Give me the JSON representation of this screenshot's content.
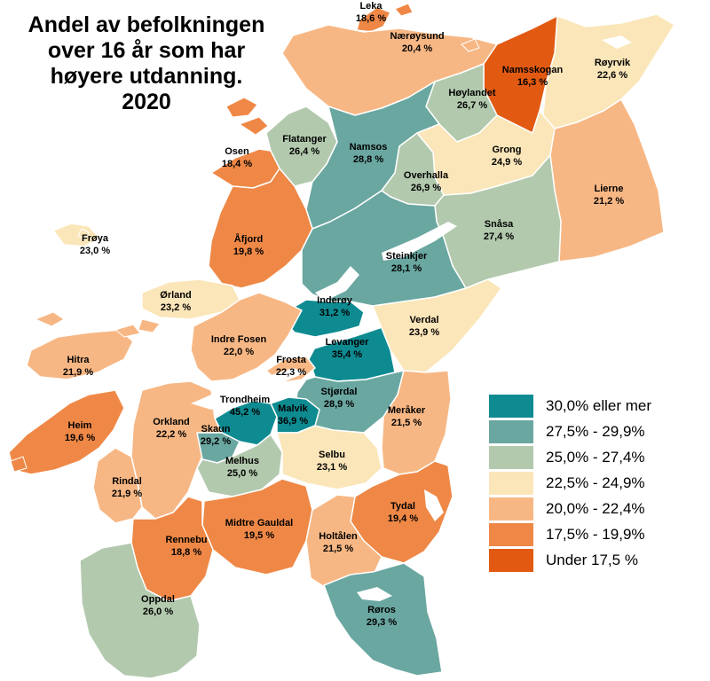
{
  "title": {
    "lines": [
      "Andel av befolkningen",
      "over 16 år som har",
      "høyere utdanning.",
      "2020"
    ]
  },
  "legend": {
    "items": [
      {
        "label": "30,0% eller mer",
        "color": "#0e8b91"
      },
      {
        "label": "27,5% - 29,9%",
        "color": "#6aa7a1"
      },
      {
        "label": "25,0% - 27,4%",
        "color": "#b2c9ad"
      },
      {
        "label": "22,5% - 24,9%",
        "color": "#fbe6b9"
      },
      {
        "label": "20,0% - 22,4%",
        "color": "#f7b784"
      },
      {
        "label": "17,5% - 19,9%",
        "color": "#ef8846"
      },
      {
        "label": "Under 17,5 %",
        "color": "#e25a12"
      }
    ]
  },
  "municipalities": [
    {
      "name": "Leka",
      "value": "18,6 %",
      "cls": 5
    },
    {
      "name": "Nærøysund",
      "value": "20,4 %",
      "cls": 4
    },
    {
      "name": "Namsskogan",
      "value": "16,3 %",
      "cls": 6
    },
    {
      "name": "Røyrvik",
      "value": "22,6 %",
      "cls": 3
    },
    {
      "name": "Høylandet",
      "value": "26,7 %",
      "cls": 2
    },
    {
      "name": "Flatanger",
      "value": "26,4 %",
      "cls": 2
    },
    {
      "name": "Namsos",
      "value": "28,8 %",
      "cls": 1
    },
    {
      "name": "Osen",
      "value": "18,4 %",
      "cls": 5
    },
    {
      "name": "Grong",
      "value": "24,9 %",
      "cls": 3
    },
    {
      "name": "Overhalla",
      "value": "26,9 %",
      "cls": 2
    },
    {
      "name": "Lierne",
      "value": "21,2 %",
      "cls": 4
    },
    {
      "name": "Snåsa",
      "value": "27,4 %",
      "cls": 2
    },
    {
      "name": "Frøya",
      "value": "23,0 %",
      "cls": 3
    },
    {
      "name": "Åfjord",
      "value": "19,8 %",
      "cls": 5
    },
    {
      "name": "Steinkjer",
      "value": "28,1 %",
      "cls": 1
    },
    {
      "name": "Ørland",
      "value": "23,2 %",
      "cls": 3
    },
    {
      "name": "Inderøy",
      "value": "31,2 %",
      "cls": 0
    },
    {
      "name": "Verdal",
      "value": "23,9 %",
      "cls": 3
    },
    {
      "name": "Indre Fosen",
      "value": "22,0 %",
      "cls": 4
    },
    {
      "name": "Levanger",
      "value": "35,4 %",
      "cls": 0
    },
    {
      "name": "Hitra",
      "value": "21,9 %",
      "cls": 4
    },
    {
      "name": "Frosta",
      "value": "22,3 %",
      "cls": 4
    },
    {
      "name": "Stjørdal",
      "value": "28,9 %",
      "cls": 1
    },
    {
      "name": "Trondheim",
      "value": "45,2 %",
      "cls": 0
    },
    {
      "name": "Malvik",
      "value": "36,9 %",
      "cls": 0
    },
    {
      "name": "Meråker",
      "value": "21,5 %",
      "cls": 4
    },
    {
      "name": "Heim",
      "value": "19,6 %",
      "cls": 5
    },
    {
      "name": "Orkland",
      "value": "22,2 %",
      "cls": 4
    },
    {
      "name": "Skaun",
      "value": "29,2 %",
      "cls": 1
    },
    {
      "name": "Melhus",
      "value": "25,0 %",
      "cls": 2
    },
    {
      "name": "Selbu",
      "value": "23,1 %",
      "cls": 3
    },
    {
      "name": "Rindal",
      "value": "21,9 %",
      "cls": 4
    },
    {
      "name": "Tydal",
      "value": "19,4 %",
      "cls": 5
    },
    {
      "name": "Midtre Gauldal",
      "value": "19,5 %",
      "cls": 5
    },
    {
      "name": "Rennebu",
      "value": "18,8 %",
      "cls": 5
    },
    {
      "name": "Holtålen",
      "value": "21,5 %",
      "cls": 4
    },
    {
      "name": "Oppdal",
      "value": "26,0 %",
      "cls": 2
    },
    {
      "name": "Røros",
      "value": "29,3 %",
      "cls": 1
    }
  ]
}
